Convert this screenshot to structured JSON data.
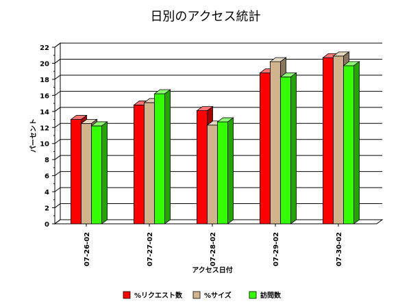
{
  "chart_data": {
    "type": "bar",
    "title": "日別のアクセス統計",
    "xlabel": "アクセス日付",
    "ylabel": "パーセント",
    "categories": [
      "07-26-02",
      "07-27-02",
      "07-28-02",
      "07-29-02",
      "07-30-02"
    ],
    "ylim": [
      0,
      22
    ],
    "yticks": [
      0,
      2,
      4,
      6,
      8,
      10,
      12,
      14,
      16,
      18,
      20,
      22
    ],
    "grid": true,
    "legend_position": "bottom",
    "series": [
      {
        "name": "%リクエスト数",
        "color": "#ff0000",
        "values": [
          13.0,
          14.8,
          14.1,
          18.8,
          20.7
        ]
      },
      {
        "name": "%サイズ",
        "color": "#d2b48c",
        "values": [
          12.5,
          15.1,
          12.3,
          20.2,
          20.9
        ]
      },
      {
        "name": "訪問数",
        "color": "#33ff00",
        "values": [
          12.2,
          16.2,
          12.7,
          18.3,
          19.7
        ]
      }
    ]
  }
}
